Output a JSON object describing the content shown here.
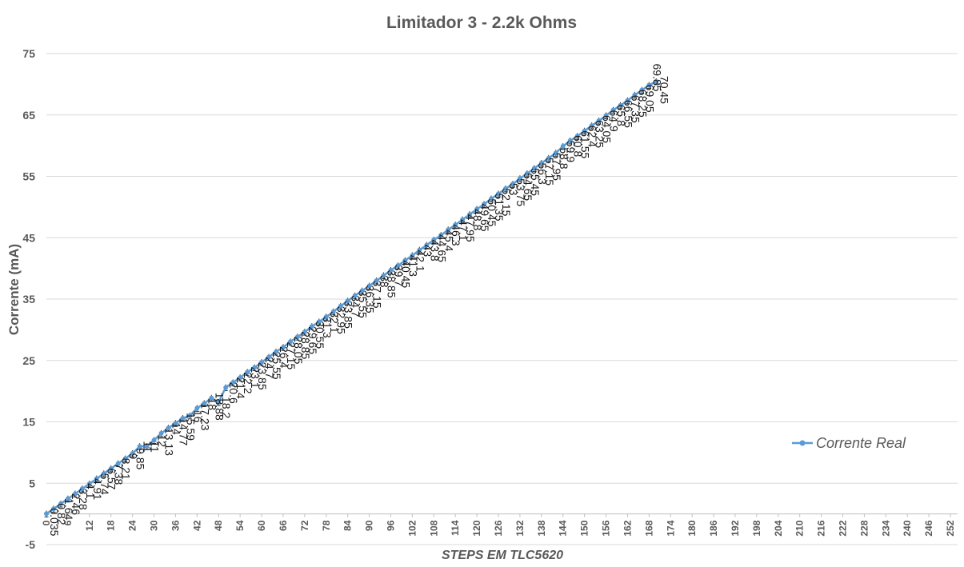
{
  "chart_data": {
    "type": "line",
    "title": "Limitador 3 - 2.2k Ohms",
    "xlabel": "STEPS EM TLC5620",
    "ylabel": "Corrente (mA)",
    "ylim": [
      -5,
      75
    ],
    "yticks": [
      -5,
      5,
      15,
      25,
      35,
      45,
      55,
      65,
      75
    ],
    "xlim": [
      0,
      254
    ],
    "xtick_step": 6,
    "xtick_max": 252,
    "grid": true,
    "error_bars": true,
    "legend_position": "right",
    "line_color": "#5b9bd5",
    "series": [
      {
        "name": "Corrente Real",
        "step": 2,
        "values": [
          0.035,
          0.82,
          1.64,
          2.46,
          3.28,
          4.1,
          4.91,
          5.74,
          6.57,
          7.38,
          8.21,
          9,
          9.85,
          11,
          11,
          12,
          13.13,
          14,
          14.77,
          15.59,
          16,
          17.23,
          18,
          18.88,
          18.2,
          20.6,
          21.4,
          22.2,
          23.1,
          23.85,
          24.7,
          25.55,
          26.4,
          27.15,
          28.05,
          28.85,
          29.65,
          30.55,
          31.3,
          32.1,
          32.95,
          33.85,
          34.7,
          35.55,
          36.35,
          37.15,
          38,
          38.85,
          39.7,
          40.45,
          41.3,
          42.1,
          43,
          43.8,
          44.65,
          45.4,
          46.3,
          47.1,
          47.95,
          48.8,
          49.65,
          50.45,
          51.35,
          52.15,
          53,
          53.75,
          54.65,
          55.45,
          56.3,
          57.15,
          57.95,
          58.8,
          59.9,
          60.8,
          61.55,
          62.4,
          63.25,
          64.05,
          64.9,
          65.8,
          66.55,
          67.35,
          68.25,
          69.05,
          69.85,
          70.45
        ]
      }
    ]
  }
}
